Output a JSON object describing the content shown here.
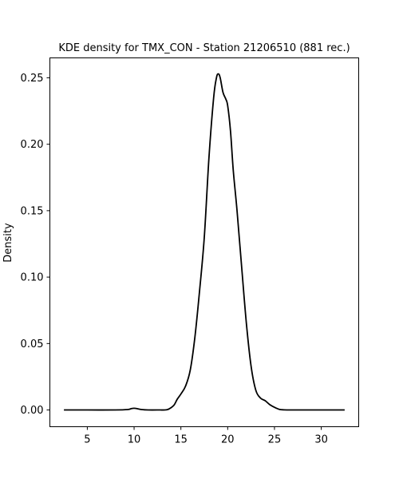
{
  "chart_data": {
    "type": "line",
    "title": "KDE density for TMX_CON - Station 21206510 (881 rec.)",
    "xlabel": "",
    "ylabel": "Density",
    "xlim": [
      1.0,
      34.0
    ],
    "ylim": [
      -0.0126,
      0.265
    ],
    "xticks": [
      5,
      10,
      15,
      20,
      25,
      30
    ],
    "yticks": [
      0.0,
      0.05,
      0.1,
      0.15,
      0.2,
      0.25
    ],
    "ytick_labels": [
      "0.00",
      "0.05",
      "0.10",
      "0.15",
      "0.20",
      "0.25"
    ],
    "grid": false,
    "series": [
      {
        "color": "#000000",
        "x": [
          2.5,
          5,
          8,
          9.3,
          9.7,
          10.0,
          10.3,
          10.8,
          11.5,
          12.5,
          13.5,
          14.0,
          14.3,
          14.6,
          15.0,
          15.5,
          16.0,
          16.5,
          17.0,
          17.5,
          18.0,
          18.5,
          18.8,
          19.0,
          19.2,
          19.5,
          19.8,
          20.0,
          20.3,
          20.6,
          21.0,
          21.5,
          22.0,
          22.5,
          23.0,
          23.5,
          24.0,
          24.5,
          25.0,
          25.5,
          26.0,
          27.0,
          29.0,
          32.5
        ],
        "y": [
          0.0,
          0.0,
          0.0,
          0.0003,
          0.001,
          0.0013,
          0.001,
          0.0003,
          0.0,
          0.0,
          0.0002,
          0.002,
          0.004,
          0.008,
          0.012,
          0.018,
          0.03,
          0.055,
          0.09,
          0.13,
          0.19,
          0.235,
          0.25,
          0.253,
          0.25,
          0.239,
          0.234,
          0.229,
          0.21,
          0.18,
          0.15,
          0.107,
          0.065,
          0.033,
          0.015,
          0.009,
          0.007,
          0.004,
          0.002,
          0.0005,
          0.0001,
          0.0,
          0.0,
          0.0
        ]
      }
    ]
  }
}
